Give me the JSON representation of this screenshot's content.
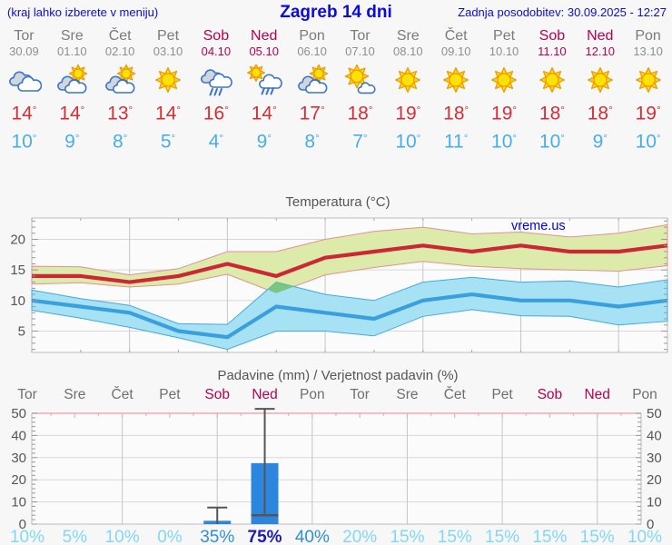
{
  "header": {
    "hint": "(kraj lahko izberete v meniju)",
    "title": "Zagreb 14 dni",
    "updated": "Zadnja posodobitev: 30.09.2025 - 12:27"
  },
  "colors": {
    "header_blue": "#0a0ae0",
    "weekend": "#b8004f",
    "day_gray": "#7b7b7b",
    "date_gray": "#8e8e8e",
    "tmax_red": "#d32f37",
    "tmin_blue": "#49aee8",
    "chart_text": "#555555",
    "grid_v": "#c6c6c6",
    "grid_h": "#d9d9d9",
    "plot_bg": "#fbfbfb",
    "plot_border": "#bdbdbd",
    "band_max_fill": "#dcebaa",
    "band_max_edge": "#e49090",
    "band_min_fill": "#a6e1f4",
    "band_min_edge": "#45a8e0",
    "band_overlap": "#7ac67e",
    "line_max": "#cd2636",
    "line_min": "#3aa0dd",
    "bar_blue": "#2d86dd",
    "whisker": "#555555",
    "precip_top_border": "#eeaab6",
    "prob_low": "#82d8f4",
    "prob_mid": "#2e8fd9",
    "prob_high": "#1c1cb4",
    "watermark_blue": "#0101e0"
  },
  "days": [
    {
      "name": "Tor",
      "date": "30.09",
      "weekend": false,
      "icon": "cloudy",
      "tmax": 14,
      "tmin": 10
    },
    {
      "name": "Sre",
      "date": "01.10",
      "weekend": false,
      "icon": "partly",
      "tmax": 14,
      "tmin": 9
    },
    {
      "name": "Čet",
      "date": "02.10",
      "weekend": false,
      "icon": "partly",
      "tmax": 13,
      "tmin": 8
    },
    {
      "name": "Pet",
      "date": "03.10",
      "weekend": false,
      "icon": "sunny",
      "tmax": 14,
      "tmin": 5
    },
    {
      "name": "Sob",
      "date": "04.10",
      "weekend": true,
      "icon": "rain",
      "tmax": 16,
      "tmin": 4
    },
    {
      "name": "Ned",
      "date": "05.10",
      "weekend": true,
      "icon": "sun-rain",
      "tmax": 14,
      "tmin": 9
    },
    {
      "name": "Pon",
      "date": "06.10",
      "weekend": false,
      "icon": "partly",
      "tmax": 17,
      "tmin": 8
    },
    {
      "name": "Tor",
      "date": "07.10",
      "weekend": false,
      "icon": "sun-small-cloud",
      "tmax": 18,
      "tmin": 7
    },
    {
      "name": "Sre",
      "date": "08.10",
      "weekend": false,
      "icon": "sunny",
      "tmax": 19,
      "tmin": 10
    },
    {
      "name": "Čet",
      "date": "09.10",
      "weekend": false,
      "icon": "sunny",
      "tmax": 18,
      "tmin": 11
    },
    {
      "name": "Pet",
      "date": "10.10",
      "weekend": false,
      "icon": "sunny",
      "tmax": 19,
      "tmin": 10
    },
    {
      "name": "Sob",
      "date": "11.10",
      "weekend": true,
      "icon": "sunny",
      "tmax": 18,
      "tmin": 10
    },
    {
      "name": "Ned",
      "date": "12.10",
      "weekend": true,
      "icon": "sunny",
      "tmax": 18,
      "tmin": 9
    },
    {
      "name": "Pon",
      "date": "13.10",
      "weekend": false,
      "icon": "sunny",
      "tmax": 19,
      "tmin": 10
    }
  ],
  "chart_data": [
    {
      "type": "line",
      "title": "Temperatura (°C)",
      "watermark": "vreme.us",
      "categories": [
        "Tor 30.09",
        "Sre 01.10",
        "Čet 02.10",
        "Pet 03.10",
        "Sob 04.10",
        "Ned 05.10",
        "Pon 06.10",
        "Tor 07.10",
        "Sre 08.10",
        "Čet 09.10",
        "Pet 10.10",
        "Sob 11.10",
        "Ned 12.10",
        "Pon 13.10"
      ],
      "ylim": [
        1.5,
        23.5
      ],
      "yticks": [
        5,
        10,
        15,
        20
      ],
      "grid": true,
      "series": [
        {
          "name": "tmax_upper",
          "values": [
            15.6,
            15.5,
            14.2,
            15.2,
            18,
            18,
            20,
            21.3,
            22,
            20.9,
            21.2,
            20.4,
            21,
            22.4
          ]
        },
        {
          "name": "tmax",
          "values": [
            14,
            14,
            13,
            14,
            16,
            14,
            17,
            18,
            19,
            18,
            19,
            18,
            18,
            19
          ]
        },
        {
          "name": "tmax_lower",
          "values": [
            12.7,
            12.9,
            12.2,
            12.7,
            14.3,
            11.2,
            14.2,
            15.4,
            16.4,
            15.6,
            15.2,
            15,
            14.8,
            15.7
          ]
        },
        {
          "name": "tmin_upper",
          "values": [
            11.7,
            10.3,
            9.2,
            6.2,
            6.1,
            13,
            11,
            10,
            13,
            13.8,
            13,
            13.2,
            12.2,
            13.4
          ]
        },
        {
          "name": "tmin",
          "values": [
            10,
            9,
            8,
            5,
            4,
            9,
            8,
            7,
            10,
            11,
            10,
            10,
            9,
            10
          ]
        },
        {
          "name": "tmin_lower",
          "values": [
            8.4,
            7.1,
            5.6,
            3.9,
            2,
            5,
            5,
            4.2,
            7.4,
            8.5,
            7.5,
            7.4,
            6,
            6.6
          ]
        }
      ]
    },
    {
      "type": "bar",
      "title": "Padavine (mm) / Verjetnost padavin (%)",
      "categories": [
        "Tor",
        "Sre",
        "Čet",
        "Pet",
        "Sob",
        "Ned",
        "Pon",
        "Tor",
        "Sre",
        "Čet",
        "Pet",
        "Sob",
        "Ned",
        "Pon"
      ],
      "values_mm": [
        0,
        0,
        0,
        0,
        1.5,
        27.5,
        0,
        0,
        0,
        0,
        0,
        0,
        0,
        0
      ],
      "whisker_low": [
        null,
        null,
        null,
        null,
        0,
        4,
        null,
        null,
        null,
        null,
        null,
        null,
        null,
        null
      ],
      "whisker_high": [
        null,
        null,
        null,
        null,
        7.5,
        52,
        null,
        null,
        null,
        null,
        null,
        null,
        null,
        null
      ],
      "prob_percent": [
        10,
        5,
        10,
        0,
        35,
        75,
        40,
        20,
        15,
        15,
        15,
        15,
        15,
        10
      ],
      "ylim": [
        0,
        50
      ],
      "yticks": [
        0,
        10,
        20,
        30,
        40,
        50
      ],
      "grid": true
    }
  ]
}
